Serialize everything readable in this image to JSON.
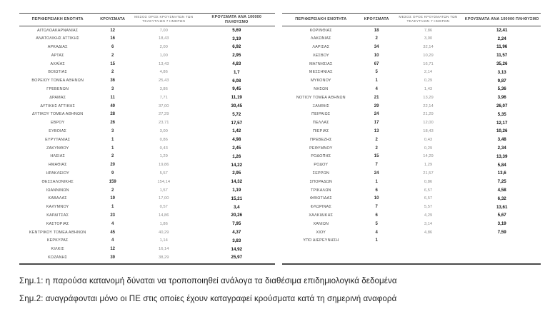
{
  "document": {
    "columns": {
      "region": "ΠΕΡΙΦΕΡΕΙΑΚΗ ΕΝΟΤΗΤΑ",
      "cases": "ΚΡΟΥΣΜΑΤΑ",
      "avg7": "ΜΕΣΟΣ ΟΡΟΣ ΚΡΟΥΣΜΑΤΩΝ ΤΩΝ ΤΕΛΕΥΤΑΙΩΝ 7 ΗΜΕΡΩΝ",
      "per100k": "ΚΡΟΥΣΜΑΤΑ ΑΝΑ 100000 ΠΛΗΘΥΣΜΟ"
    },
    "tables": [
      {
        "rows": [
          {
            "region": "ΑΙΤΩΛΟΑΚΑΡΝΑΝΙΑΣ",
            "cases": "12",
            "avg7": "7,00",
            "per100k": "5,69"
          },
          {
            "region": "ΑΝΑΤΟΛΙΚΗΣ ΑΤΤΙΚΗΣ",
            "cases": "16",
            "avg7": "18,43",
            "per100k": "3,19"
          },
          {
            "region": "ΑΡΚΑΔΙΑΣ",
            "cases": "6",
            "avg7": "2,00",
            "per100k": "6,92"
          },
          {
            "region": "ΑΡΤΑΣ",
            "cases": "2",
            "avg7": "1,00",
            "per100k": "2,95"
          },
          {
            "region": "ΑΧΑΪΑΣ",
            "cases": "15",
            "avg7": "13,43",
            "per100k": "4,83"
          },
          {
            "region": "ΒΟΙΩΤΙΑΣ",
            "cases": "2",
            "avg7": "4,86",
            "per100k": "1,7"
          },
          {
            "region": "ΒΟΡΕΙΟΥ ΤΟΜΕΑ ΑΘΗΝΩΝ",
            "cases": "36",
            "avg7": "25,43",
            "per100k": "6,08"
          },
          {
            "region": "ΓΡΕΒΕΝΩΝ",
            "cases": "3",
            "avg7": "3,86",
            "per100k": "9,45"
          },
          {
            "region": "ΔΡΑΜΑΣ",
            "cases": "11",
            "avg7": "7,71",
            "per100k": "11,19"
          },
          {
            "region": "ΔΥΤΙΚΗΣ ΑΤΤΙΚΗΣ",
            "cases": "49",
            "avg7": "37,00",
            "per100k": "30,45"
          },
          {
            "region": "ΔΥΤΙΚΟΥ ΤΟΜΕΑ ΑΘΗΝΩΝ",
            "cases": "28",
            "avg7": "27,29",
            "per100k": "5,72"
          },
          {
            "region": "ΕΒΡΟΥ",
            "cases": "26",
            "avg7": "23,71",
            "per100k": "17,57"
          },
          {
            "region": "ΕΥΒΟΙΑΣ",
            "cases": "3",
            "avg7": "3,00",
            "per100k": "1,42"
          },
          {
            "region": "ΕΥΡΥΤΑΝΙΑΣ",
            "cases": "1",
            "avg7": "0,86",
            "per100k": "4,98"
          },
          {
            "region": "ΖΑΚΥΝΘΟΥ",
            "cases": "1",
            "avg7": "0,43",
            "per100k": "2,45"
          },
          {
            "region": "ΗΛΕΙΑΣ",
            "cases": "2",
            "avg7": "1,29",
            "per100k": "1,26"
          },
          {
            "region": "ΗΜΑΘΙΑΣ",
            "cases": "20",
            "avg7": "19,86",
            "per100k": "14,22"
          },
          {
            "region": "ΗΡΑΚΛΕΙΟΥ",
            "cases": "9",
            "avg7": "5,57",
            "per100k": "2,95"
          },
          {
            "region": "ΘΕΣΣΑΛΟΝΙΚΗΣ",
            "cases": "159",
            "avg7": "154,14",
            "per100k": "14,32"
          },
          {
            "region": "ΙΩΑΝΝΙΝΩΝ",
            "cases": "2",
            "avg7": "1,57",
            "per100k": "1,19"
          },
          {
            "region": "ΚΑΒΑΛΑΣ",
            "cases": "19",
            "avg7": "17,00",
            "per100k": "15,21"
          },
          {
            "region": "ΚΑΛΥΜΝΟΥ",
            "cases": "1",
            "avg7": "0,57",
            "per100k": "3,4"
          },
          {
            "region": "ΚΑΡΔΙΤΣΑΣ",
            "cases": "23",
            "avg7": "14,86",
            "per100k": "20,26"
          },
          {
            "region": "ΚΑΣΤΟΡΙΑΣ",
            "cases": "4",
            "avg7": "1,86",
            "per100k": "7,95"
          },
          {
            "region": "ΚΕΝΤΡΙΚΟΥ ΤΟΜΕΑ ΑΘΗΝΩΝ",
            "cases": "45",
            "avg7": "40,29",
            "per100k": "4,37"
          },
          {
            "region": "ΚΕΡΚΥΡΑΣ",
            "cases": "4",
            "avg7": "1,14",
            "per100k": "3,83"
          },
          {
            "region": "ΚΙΛΚΙΣ",
            "cases": "12",
            "avg7": "16,14",
            "per100k": "14,92"
          },
          {
            "region": "ΚΟΖΑΝΗΣ",
            "cases": "39",
            "avg7": "38,29",
            "per100k": "25,97"
          }
        ]
      },
      {
        "rows": [
          {
            "region": "ΚΟΡΙΝΘΙΑΣ",
            "cases": "18",
            "avg7": "7,86",
            "per100k": "12,41"
          },
          {
            "region": "ΛΑΚΩΝΙΑΣ",
            "cases": "2",
            "avg7": "3,00",
            "per100k": "2,24"
          },
          {
            "region": "ΛΑΡΙΣΑΣ",
            "cases": "34",
            "avg7": "32,14",
            "per100k": "11,96"
          },
          {
            "region": "ΛΕΣΒΟΥ",
            "cases": "10",
            "avg7": "10,29",
            "per100k": "11,57"
          },
          {
            "region": "ΜΑΓΝΗΣΙΑΣ",
            "cases": "67",
            "avg7": "16,71",
            "per100k": "35,26"
          },
          {
            "region": "ΜΕΣΣΗΝΙΑΣ",
            "cases": "5",
            "avg7": "2,14",
            "per100k": "3,13"
          },
          {
            "region": "ΜΥΚΟΝΟΥ",
            "cases": "1",
            "avg7": "0,29",
            "per100k": "9,87"
          },
          {
            "region": "ΝΗΣΩΝ",
            "cases": "4",
            "avg7": "1,43",
            "per100k": "5,36"
          },
          {
            "region": "ΝΟΤΙΟΥ ΤΟΜΕΑ ΑΘΗΝΩΝ",
            "cases": "21",
            "avg7": "13,29",
            "per100k": "3,96"
          },
          {
            "region": "ΞΑΝΘΗΣ",
            "cases": "29",
            "avg7": "22,14",
            "per100k": "26,07"
          },
          {
            "region": "ΠΕΙΡΑΙΩΣ",
            "cases": "24",
            "avg7": "21,29",
            "per100k": "5,35"
          },
          {
            "region": "ΠΕΛΛΑΣ",
            "cases": "17",
            "avg7": "12,00",
            "per100k": "12,17"
          },
          {
            "region": "ΠΙΕΡΙΑΣ",
            "cases": "13",
            "avg7": "18,43",
            "per100k": "10,26"
          },
          {
            "region": "ΠΡΕΒΕΖΗΣ",
            "cases": "2",
            "avg7": "0,43",
            "per100k": "3,48"
          },
          {
            "region": "ΡΕΘΥΜΝΟΥ",
            "cases": "2",
            "avg7": "0,29",
            "per100k": "2,34"
          },
          {
            "region": "ΡΟΔΟΠΗΣ",
            "cases": "15",
            "avg7": "14,29",
            "per100k": "13,39"
          },
          {
            "region": "ΡΟΔΟΥ",
            "cases": "7",
            "avg7": "1,29",
            "per100k": "5,84"
          },
          {
            "region": "ΣΕΡΡΩΝ",
            "cases": "24",
            "avg7": "21,57",
            "per100k": "13,6"
          },
          {
            "region": "ΣΠΟΡΑΔΩΝ",
            "cases": "1",
            "avg7": "0,86",
            "per100k": "7,25"
          },
          {
            "region": "ΤΡΙΚΑΛΩΝ",
            "cases": "6",
            "avg7": "6,57",
            "per100k": "4,58"
          },
          {
            "region": "ΦΘΙΩΤΙΔΑΣ",
            "cases": "10",
            "avg7": "6,57",
            "per100k": "6,32"
          },
          {
            "region": "ΦΛΩΡΙΝΑΣ",
            "cases": "7",
            "avg7": "5,57",
            "per100k": "13,61"
          },
          {
            "region": "ΧΑΛΚΙΔΙΚΗΣ",
            "cases": "6",
            "avg7": "4,29",
            "per100k": "5,67"
          },
          {
            "region": "ΧΑΝΙΩΝ",
            "cases": "5",
            "avg7": "3,14",
            "per100k": "3,19"
          },
          {
            "region": "ΧΙΟΥ",
            "cases": "4",
            "avg7": "4,86",
            "per100k": "7,59"
          },
          {
            "region": "ΥΠΟ ΔΙΕΡΕΥΝΗΣΗ",
            "cases": "1",
            "avg7": "",
            "per100k": ""
          }
        ]
      }
    ],
    "footnotes": [
      "Σημ.1: η παρούσα κατανομή δύναται να τροποποιηθεί ανάλογα τα διαθέσιμα επιδημιολογικά δεδομένα",
      "Σημ.2: αναγράφονται μόνο οι ΠΕ στις οποίες έχουν καταγραφεί κρούσματα κατά τη σημερινή αναφορά"
    ],
    "colors": {
      "border": "#4a4a4a",
      "region_text": "#474747",
      "cases_text": "#2e2e2e",
      "avg_text": "#8c8c8c",
      "per100k_text": "#111111",
      "footnote_text": "#1f1f1f",
      "background": "#ffffff"
    }
  }
}
